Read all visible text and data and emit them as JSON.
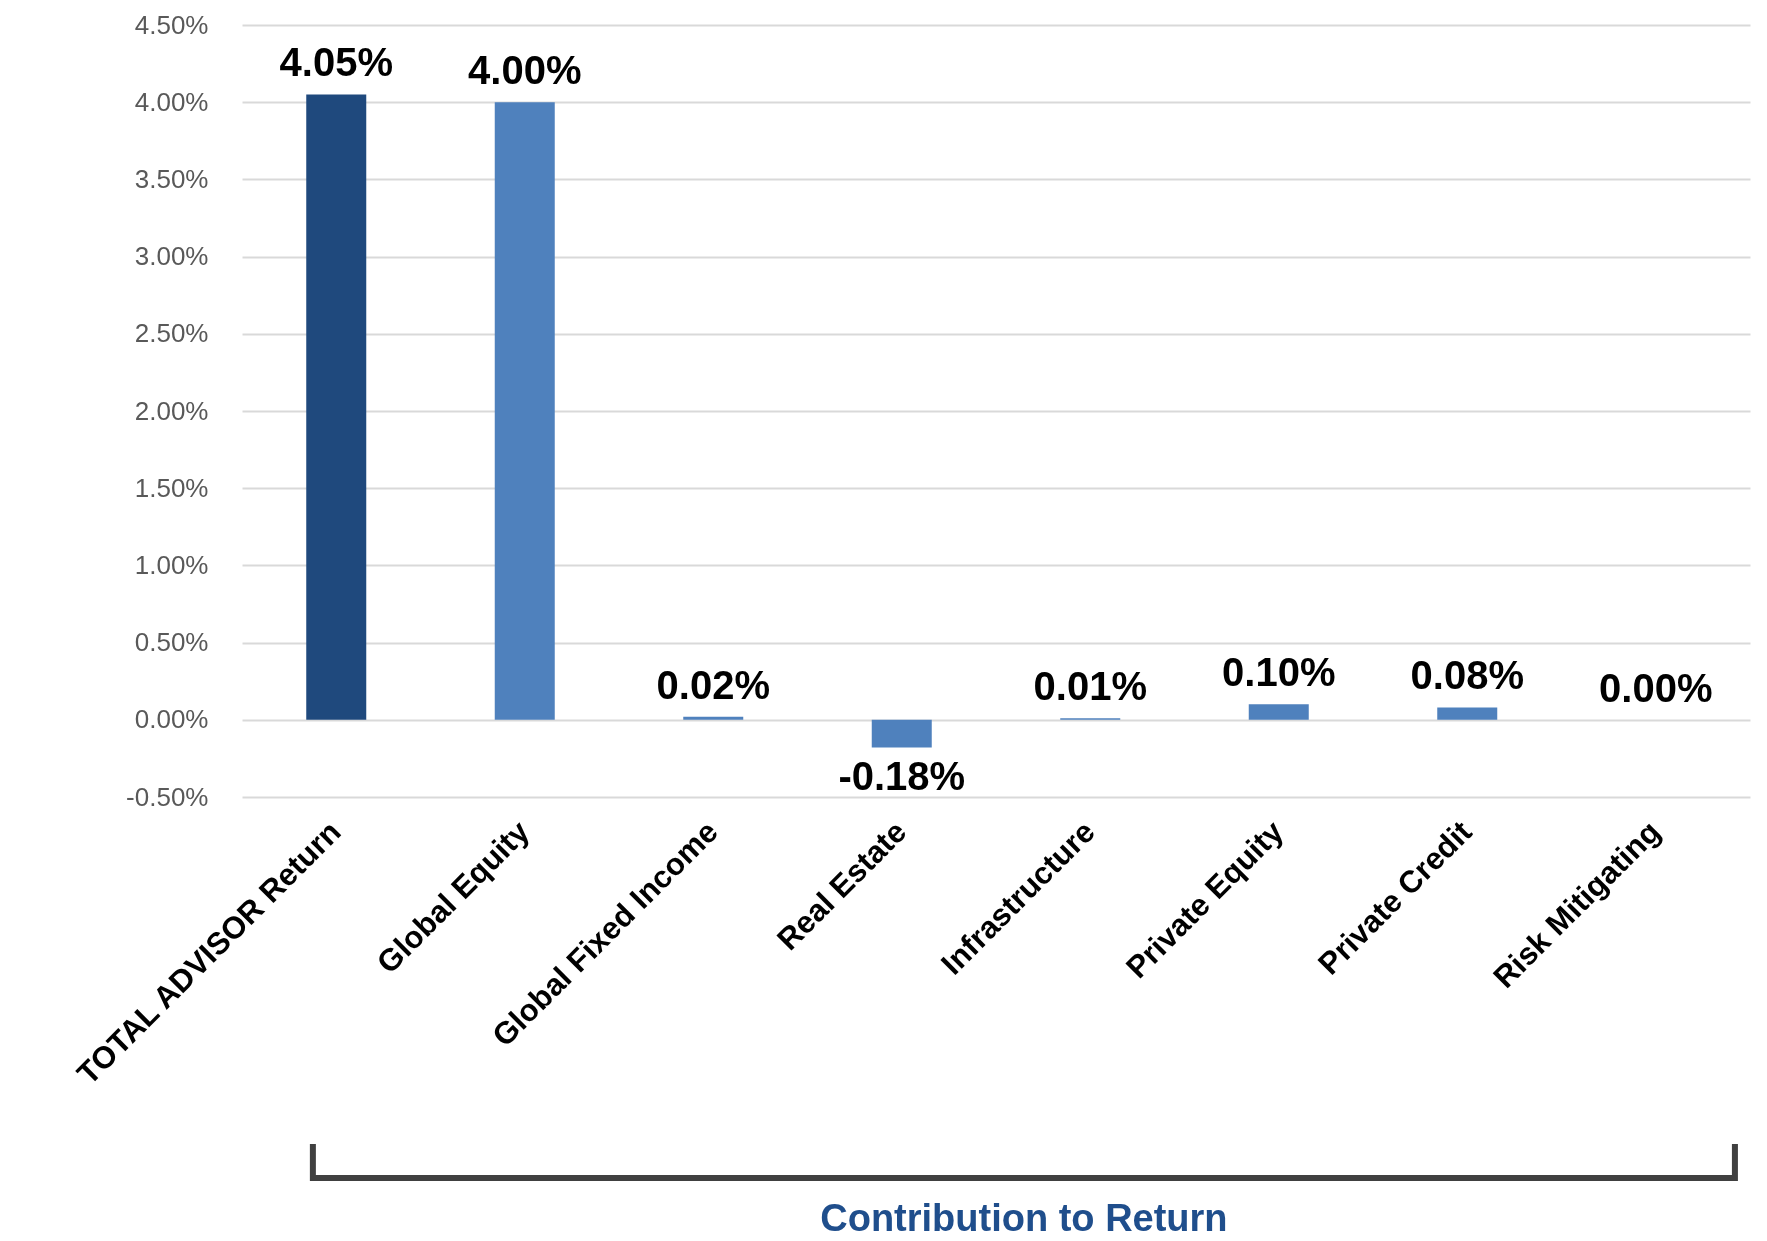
{
  "chart_data": {
    "type": "bar",
    "categories": [
      "TOTAL ADVISOR Return",
      "Global Equity",
      "Global Fixed Income",
      "Real Estate",
      "Infrastructure",
      "Private Equity",
      "Private Credit",
      "Risk Mitigating"
    ],
    "values": [
      4.05,
      4.0,
      0.02,
      -0.18,
      0.01,
      0.1,
      0.08,
      0.0
    ],
    "colors": [
      "#1f497d",
      "#4f81bd",
      "#4f81bd",
      "#4f81bd",
      "#4f81bd",
      "#4f81bd",
      "#4f81bd",
      "#4f81bd"
    ],
    "value_labels": [
      "4.05%",
      "4.00%",
      "0.02%",
      "-0.18%",
      "0.01%",
      "0.10%",
      "0.08%",
      "0.00%"
    ],
    "ylim": [
      -0.5,
      4.5
    ],
    "yticks": [
      {
        "value": -0.5,
        "label": "-0.50%"
      },
      {
        "value": 0,
        "label": "0.00%"
      },
      {
        "value": 0.5,
        "label": "0.50%"
      },
      {
        "value": 1,
        "label": "1.00%"
      },
      {
        "value": 1.5,
        "label": "1.50%"
      },
      {
        "value": 2,
        "label": "2.00%"
      },
      {
        "value": 2.5,
        "label": "2.50%"
      },
      {
        "value": 3,
        "label": "3.00%"
      },
      {
        "value": 3.5,
        "label": "3.50%"
      },
      {
        "value": 4,
        "label": "4.00%"
      },
      {
        "value": 4.5,
        "label": "4.50%"
      }
    ],
    "grid": true,
    "annotations": [
      "Contribution to Return"
    ]
  }
}
